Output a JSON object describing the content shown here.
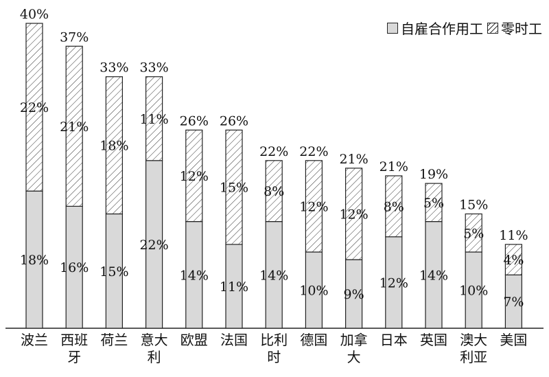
{
  "chart_data": {
    "type": "bar",
    "stacked": true,
    "categories": [
      "波兰",
      "西班牙",
      "荷兰",
      "意大利",
      "欧盟",
      "法国",
      "比利时",
      "德国",
      "加拿大",
      "日本",
      "英国",
      "澳大利亚",
      "美国"
    ],
    "category_label_lines": [
      [
        "波兰"
      ],
      [
        "西班",
        "牙"
      ],
      [
        "荷兰"
      ],
      [
        "意大",
        "利"
      ],
      [
        "欧盟"
      ],
      [
        "法国"
      ],
      [
        "比利",
        "时"
      ],
      [
        "德国"
      ],
      [
        "加拿",
        "大"
      ],
      [
        "日本"
      ],
      [
        "英国"
      ],
      [
        "澳大",
        "利亚"
      ],
      [
        "美国"
      ]
    ],
    "series": [
      {
        "name": "自雇合作用工",
        "values": [
          18,
          16,
          15,
          22,
          14,
          11,
          14,
          10,
          9,
          12,
          14,
          10,
          7
        ],
        "labels": [
          "18%",
          "16%",
          "15%",
          "22%",
          "14%",
          "11%",
          "14%",
          "10%",
          "9%",
          "12%",
          "14%",
          "10%",
          "7%"
        ],
        "fill": "#d9d9d9"
      },
      {
        "name": "零时工",
        "values": [
          22,
          21,
          18,
          11,
          12,
          15,
          8,
          12,
          12,
          8,
          5,
          5,
          4
        ],
        "labels": [
          "22%",
          "21%",
          "18%",
          "11%",
          "12%",
          "15%",
          "8%",
          "12%",
          "12%",
          "8%",
          "5%",
          "5%",
          "4%"
        ],
        "fill": "hatched"
      }
    ],
    "totals": [
      "40%",
      "37%",
      "33%",
      "33%",
      "26%",
      "26%",
      "22%",
      "22%",
      "21%",
      "21%",
      "19%",
      "15%",
      "11%"
    ],
    "ylim": [
      0,
      40
    ],
    "grid": false,
    "legend_position": "top-right",
    "colors": {
      "solid": "#d9d9d9",
      "outline": "#222222",
      "hatch": "#333333",
      "text": "#111111"
    }
  }
}
